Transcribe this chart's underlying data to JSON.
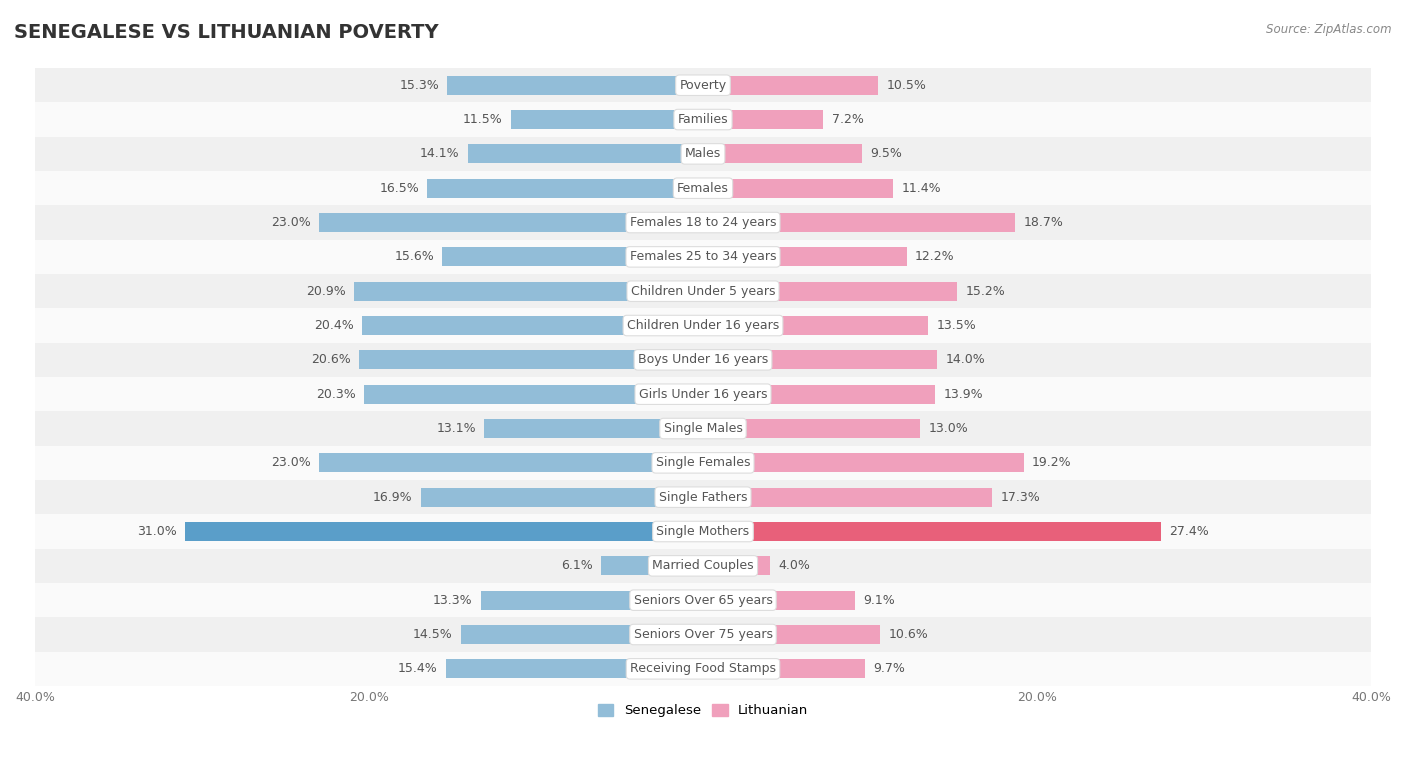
{
  "title": "SENEGALESE VS LITHUANIAN POVERTY",
  "source": "Source: ZipAtlas.com",
  "categories": [
    "Poverty",
    "Families",
    "Males",
    "Females",
    "Females 18 to 24 years",
    "Females 25 to 34 years",
    "Children Under 5 years",
    "Children Under 16 years",
    "Boys Under 16 years",
    "Girls Under 16 years",
    "Single Males",
    "Single Females",
    "Single Fathers",
    "Single Mothers",
    "Married Couples",
    "Seniors Over 65 years",
    "Seniors Over 75 years",
    "Receiving Food Stamps"
  ],
  "senegalese": [
    15.3,
    11.5,
    14.1,
    16.5,
    23.0,
    15.6,
    20.9,
    20.4,
    20.6,
    20.3,
    13.1,
    23.0,
    16.9,
    31.0,
    6.1,
    13.3,
    14.5,
    15.4
  ],
  "lithuanian": [
    10.5,
    7.2,
    9.5,
    11.4,
    18.7,
    12.2,
    15.2,
    13.5,
    14.0,
    13.9,
    13.0,
    19.2,
    17.3,
    27.4,
    4.0,
    9.1,
    10.6,
    9.7
  ],
  "senegalese_color": "#92BDD8",
  "lithuanian_color": "#F0A0BC",
  "senegalese_highlight": "#5A9EC9",
  "lithuanian_highlight": "#E8607A",
  "bg_color": "#FFFFFF",
  "row_alt_color": "#F0F0F0",
  "row_main_color": "#FAFAFA",
  "axis_max": 40.0,
  "bar_height": 0.55,
  "value_fontsize": 9,
  "title_fontsize": 14,
  "category_fontsize": 9,
  "tick_fontsize": 9
}
